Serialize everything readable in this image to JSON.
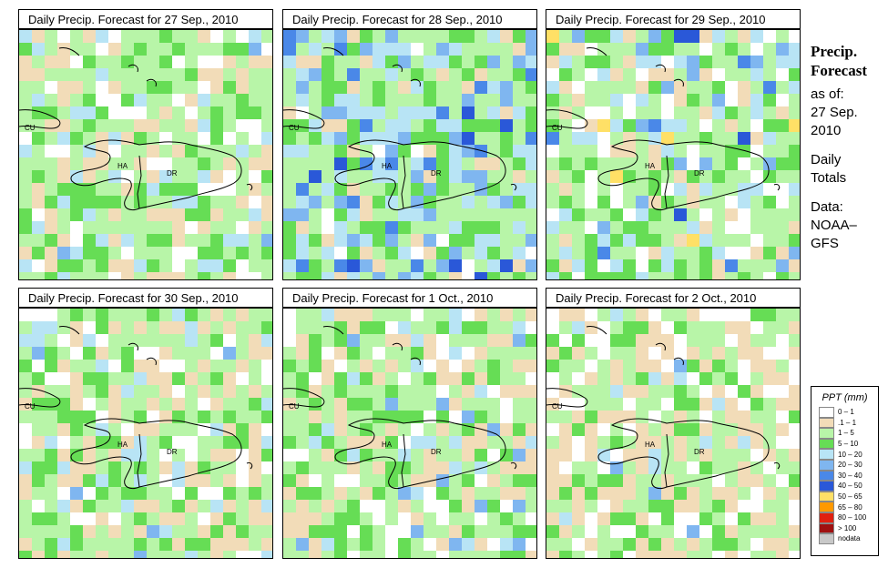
{
  "panels": [
    {
      "title": "Daily Precip. Forecast for  27 Sep., 2010"
    },
    {
      "title": "Daily Precip. Forecast for  28 Sep., 2010"
    },
    {
      "title": "Daily Precip. Forecast for  29 Sep., 2010"
    },
    {
      "title": "Daily Precip. Forecast for  30 Sep., 2010"
    },
    {
      "title": "Daily Precip. Forecast for  1 Oct., 2010"
    },
    {
      "title": "Daily Precip. Forecast for  2 Oct., 2010"
    }
  ],
  "country_labels": {
    "cu": "CU",
    "ha": "HA",
    "dr": "DR"
  },
  "side": {
    "title1": "Precip.",
    "title2": "Forecast",
    "asof": "as of:",
    "date1": "27 Sep.",
    "date2": "2010",
    "daily1": "Daily",
    "daily2": "Totals",
    "data1": "Data:",
    "data2": "NOAA–",
    "data3": "GFS"
  },
  "legend": {
    "title": "PPT (mm)",
    "items": [
      {
        "label": "0 – 1",
        "color": "#ffffff"
      },
      {
        "label": ".1 – 1",
        "color": "#f2dcb8"
      },
      {
        "label": "1 – 5",
        "color": "#b8f5a8"
      },
      {
        "label": "5 – 10",
        "color": "#66dd55"
      },
      {
        "label": "10 – 20",
        "color": "#b8e4f5"
      },
      {
        "label": "20 – 30",
        "color": "#7fb6f0"
      },
      {
        "label": "30 – 40",
        "color": "#4a88e8"
      },
      {
        "label": "40 – 50",
        "color": "#2a58d8"
      },
      {
        "label": "50 – 65",
        "color": "#ffe066"
      },
      {
        "label": "65 – 80",
        "color": "#ff9900"
      },
      {
        "label": "80 – 100",
        "color": "#e02010"
      },
      {
        "label": "> 100",
        "color": "#a01010"
      },
      {
        "label": "nodata",
        "color": "#c8c8c8"
      }
    ]
  }
}
